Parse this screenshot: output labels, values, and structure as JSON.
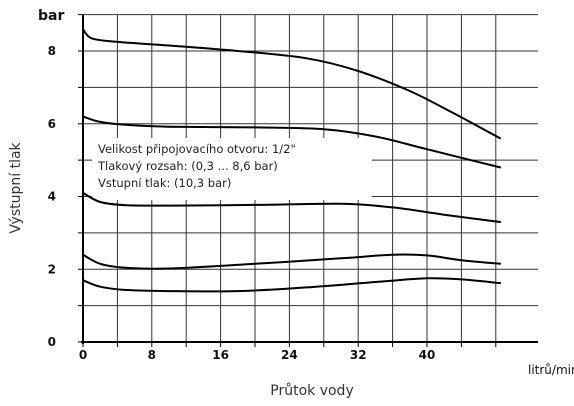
{
  "chart_data": {
    "type": "line",
    "xlabel": "Průtok vody",
    "ylabel": "Výstupní tlak",
    "x_unit": "litrů/min",
    "y_unit": "bar",
    "xlim": [
      0,
      50
    ],
    "ylim": [
      0,
      9
    ],
    "xticks": [
      0,
      8,
      16,
      24,
      32,
      40
    ],
    "yticks": [
      0,
      2,
      4,
      6,
      8
    ],
    "grid": true,
    "annotation_lines": [
      "Velikost připojovacího otvoru: 1/2\"",
      "Tlakový rozsah: (0,3 ... 8,6 bar)",
      "Vstupní tlak: (10,3 bar)"
    ],
    "series": [
      {
        "x": [
          0,
          1,
          4,
          10,
          18,
          26,
          32,
          38,
          43,
          48.5
        ],
        "values": [
          8.6,
          8.35,
          8.25,
          8.15,
          8.0,
          7.8,
          7.45,
          6.9,
          6.3,
          5.6
        ]
      },
      {
        "x": [
          0,
          2,
          5,
          10,
          20,
          28,
          34,
          40,
          48.5
        ],
        "values": [
          6.2,
          6.05,
          5.97,
          5.92,
          5.9,
          5.85,
          5.65,
          5.3,
          4.8
        ]
      },
      {
        "x": [
          0,
          2,
          5,
          10,
          20,
          30,
          36,
          42,
          48.5
        ],
        "values": [
          4.1,
          3.85,
          3.76,
          3.75,
          3.77,
          3.8,
          3.7,
          3.5,
          3.3
        ]
      },
      {
        "x": [
          0,
          2,
          5,
          10,
          20,
          30,
          36,
          40,
          44,
          48.5
        ],
        "values": [
          2.4,
          2.15,
          2.04,
          2.02,
          2.15,
          2.3,
          2.4,
          2.38,
          2.25,
          2.15
        ]
      },
      {
        "x": [
          0,
          2,
          5,
          10,
          18,
          26,
          34,
          40,
          44,
          48.5
        ],
        "values": [
          1.7,
          1.52,
          1.43,
          1.4,
          1.4,
          1.5,
          1.65,
          1.75,
          1.72,
          1.62
        ]
      }
    ]
  }
}
